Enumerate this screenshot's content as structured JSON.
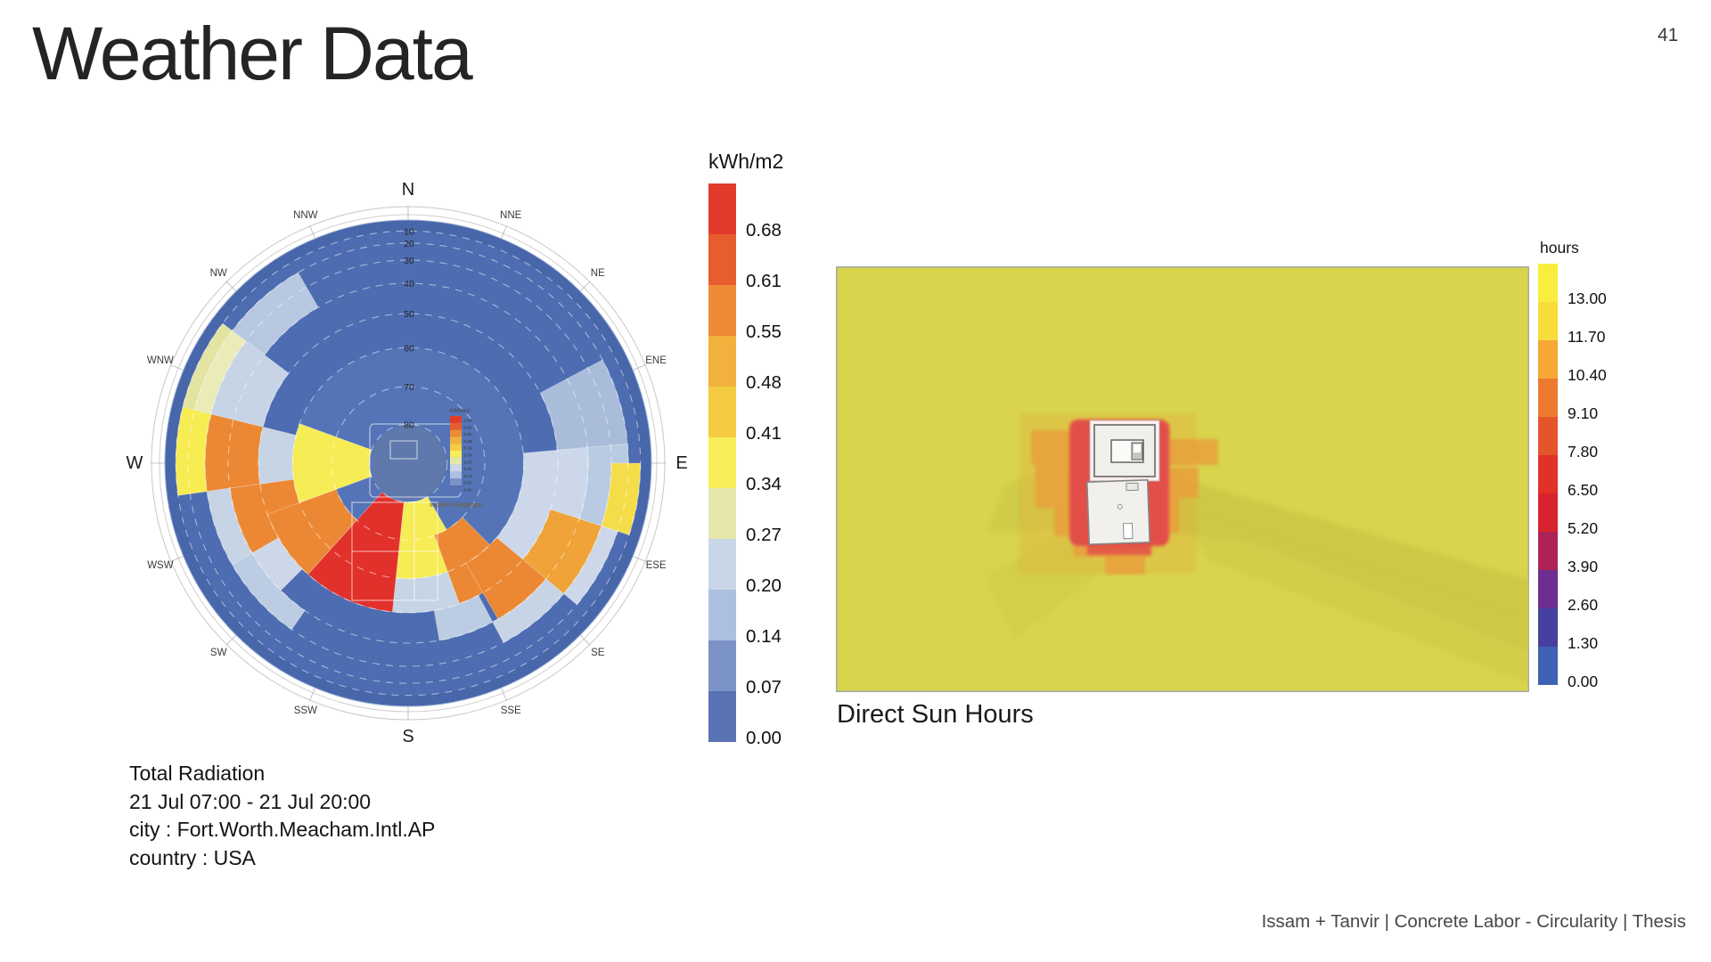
{
  "page": {
    "title": "Weather Data",
    "page_number": "41"
  },
  "footer": {
    "credit": "Issam + Tanvir | Concrete Labor - Circularity | Thesis"
  },
  "chart_data": [
    {
      "type": "polar-heatmap",
      "name": "total-radiation-rose",
      "title": "Total Radiation",
      "period": "21 Jul 07:00 - 21 Jul 20:00",
      "city": "Fort.Worth.Meacham.Intl.AP",
      "country": "USA",
      "units": "kWh/m2",
      "meta_lines": [
        "Total Radiation",
        "21 Jul 07:00 - 21 Jul 20:00",
        "city : Fort.Worth.Meacham.Intl.AP",
        "country : USA"
      ],
      "compass": [
        "N",
        "NNE",
        "NE",
        "ENE",
        "E",
        "ESE",
        "SE",
        "SSE",
        "S",
        "SSW",
        "SW",
        "WSW",
        "W",
        "WNW",
        "NW",
        "NNW"
      ],
      "altitude_ticks": [
        {
          "label": "10",
          "rf": 0.955
        },
        {
          "label": "20",
          "rf": 0.905
        },
        {
          "label": "30",
          "rf": 0.835
        },
        {
          "label": "40",
          "rf": 0.74
        },
        {
          "label": "50",
          "rf": 0.615
        },
        {
          "label": "60",
          "rf": 0.475
        },
        {
          "label": "70",
          "rf": 0.315
        },
        {
          "label": "80",
          "rf": 0.16
        }
      ],
      "ring_fractions": [
        1.0,
        0.955,
        0.905,
        0.835,
        0.74,
        0.615,
        0.475,
        0.315,
        0.16
      ],
      "colors": {
        "base": "#4d6cb1",
        "outer_band": "#4866aa",
        "inner_disc": "#5474b7",
        "center_cap": "#6079ab"
      },
      "colorbar": {
        "title": "kWh/m2",
        "entries": [
          {
            "value": "0.68",
            "color": "#e33b2b"
          },
          {
            "value": "0.61",
            "color": "#e75d30"
          },
          {
            "value": "0.55",
            "color": "#ee8a35"
          },
          {
            "value": "0.48",
            "color": "#f1b13c"
          },
          {
            "value": "0.41",
            "color": "#f4cb41"
          },
          {
            "value": "0.34",
            "color": "#f8ee5a"
          },
          {
            "value": "0.27",
            "color": "#e6e7ab"
          },
          {
            "value": "0.20",
            "color": "#c9d6e8"
          },
          {
            "value": "0.14",
            "color": "#abc0e0"
          },
          {
            "value": "0.07",
            "color": "#7b93c6"
          },
          {
            "value": "0.00",
            "color": "#5872b4"
          }
        ]
      },
      "inner_legend": {
        "title": "kWh/m2",
        "caption": "Incident Radiation"
      },
      "sectors": [
        {
          "az": [
            284,
            307
          ],
          "rings": [
            2,
            2
          ],
          "value": 0.27,
          "color": "#e2e4a0"
        },
        {
          "az": [
            284,
            307
          ],
          "rings": [
            3,
            3
          ],
          "value": 0.27,
          "color": "#eaebb7"
        },
        {
          "az": [
            262,
            284
          ],
          "rings": [
            2,
            3
          ],
          "value": 0.34,
          "color": "#f7ec52"
        },
        {
          "az": [
            307,
            330
          ],
          "rings": [
            3,
            4
          ],
          "value": 0.14,
          "color": "#b7c8e0"
        },
        {
          "az": [
            284,
            307
          ],
          "rings": [
            4,
            5
          ],
          "value": 0.2,
          "color": "#c6d4e6"
        },
        {
          "az": [
            262,
            284
          ],
          "rings": [
            4,
            5
          ],
          "value": 0.55,
          "color": "#ec8833"
        },
        {
          "az": [
            240,
            262
          ],
          "rings": [
            5,
            6
          ],
          "value": 0.55,
          "color": "#ec8833"
        },
        {
          "az": [
            240,
            262
          ],
          "rings": [
            4,
            4
          ],
          "value": 0.2,
          "color": "#c6d4e6"
        },
        {
          "az": [
            262,
            284
          ],
          "rings": [
            6,
            6
          ],
          "value": 0.2,
          "color": "#c6d4e6"
        },
        {
          "az": [
            225,
            240
          ],
          "rings": [
            5,
            6
          ],
          "value": 0.2,
          "color": "#ccd8ea"
        },
        {
          "az": [
            215,
            240
          ],
          "rings": [
            4,
            4
          ],
          "value": 0.14,
          "color": "#bccde3"
        },
        {
          "az": [
            222,
            250
          ],
          "rings": [
            6,
            7
          ],
          "value": 0.55,
          "color": "#ec8833"
        },
        {
          "az": [
            250,
            290
          ],
          "rings": [
            7,
            8
          ],
          "value": 0.34,
          "color": "#f6ec55"
        },
        {
          "az": [
            186,
            222
          ],
          "rings": [
            6,
            8
          ],
          "value": 0.68,
          "color": "#e2302a"
        },
        {
          "az": [
            150,
            186
          ],
          "rings": [
            7,
            8
          ],
          "value": 0.34,
          "color": "#f6ec55"
        },
        {
          "az": [
            135,
            160
          ],
          "rings": [
            6,
            7
          ],
          "value": 0.55,
          "color": "#ec8833"
        },
        {
          "az": [
            160,
            186
          ],
          "rings": [
            6,
            6
          ],
          "value": 0.2,
          "color": "#c6d4e6"
        },
        {
          "az": [
            62,
            85
          ],
          "rings": [
            3,
            5
          ],
          "value": 0.14,
          "color": "#a9bdda"
        },
        {
          "az": [
            85,
            108
          ],
          "rings": [
            3,
            4
          ],
          "value": 0.14,
          "color": "#b9cbe2"
        },
        {
          "az": [
            108,
            130
          ],
          "rings": [
            3,
            4
          ],
          "value": 0.2,
          "color": "#ccd8ea"
        },
        {
          "az": [
            90,
            108
          ],
          "rings": [
            2,
            3
          ],
          "value": 0.34,
          "color": "#f5dd4a"
        },
        {
          "az": [
            85,
            130
          ],
          "rings": [
            5,
            6
          ],
          "value": 0.2,
          "color": "#ccd8ea"
        },
        {
          "az": [
            108,
            132
          ],
          "rings": [
            4,
            5
          ],
          "value": 0.48,
          "color": "#efa338"
        },
        {
          "az": [
            130,
            150
          ],
          "rings": [
            5,
            6
          ],
          "value": 0.55,
          "color": "#ec8833"
        },
        {
          "az": [
            130,
            152
          ],
          "rings": [
            4,
            4
          ],
          "value": 0.2,
          "color": "#c6d4e6"
        },
        {
          "az": [
            152,
            170
          ],
          "rings": [
            5,
            5
          ],
          "value": 0.14,
          "color": "#bccde3"
        }
      ]
    },
    {
      "type": "heatmap",
      "name": "direct-sun-hours-map",
      "title": "Direct Sun Hours",
      "units": "hours",
      "colors": {
        "ground": "#d8d54d",
        "band": "#cbc646",
        "orange": "#e9a03c",
        "red": "#e25048",
        "building_fill": "#f0efec"
      },
      "colorbar": {
        "title": "hours",
        "entries": [
          {
            "value": "13.00",
            "color": "#f9ee3d"
          },
          {
            "value": "11.70",
            "color": "#f8dd3a"
          },
          {
            "value": "10.40",
            "color": "#f5a834"
          },
          {
            "value": "9.10",
            "color": "#ec7b30"
          },
          {
            "value": "7.80",
            "color": "#e5552c"
          },
          {
            "value": "6.50",
            "color": "#e13128"
          },
          {
            "value": "5.20",
            "color": "#d8232e"
          },
          {
            "value": "3.90",
            "color": "#ae2357"
          },
          {
            "value": "2.60",
            "color": "#6e2d91"
          },
          {
            "value": "1.30",
            "color": "#46409f"
          },
          {
            "value": "0.00",
            "color": "#3f62b5"
          }
        ]
      },
      "regions": [
        {
          "name": "open ground",
          "hours_bin": "11.70 - 13.00"
        },
        {
          "name": "diagonal morning/evening shadow bands",
          "hours_bin": "9.10 - 11.70"
        },
        {
          "name": "stepped shadow around buildings",
          "hours_bin": "7.80 - 10.40"
        },
        {
          "name": "immediately adjacent to buildings",
          "hours_bin": "3.90 - 6.50"
        },
        {
          "name": "building footprints",
          "hours_bin": "n/a"
        }
      ]
    }
  ]
}
